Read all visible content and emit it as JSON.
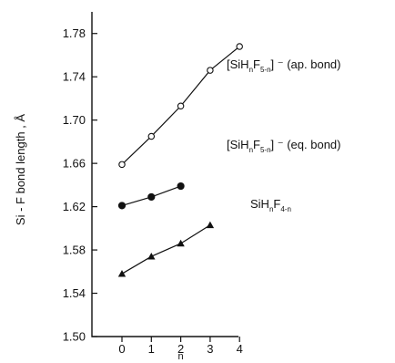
{
  "chart_data": {
    "type": "line",
    "x": [
      0,
      1,
      2,
      3,
      4
    ],
    "xlabel": "n",
    "ylabel": "Si - F bond length , Å",
    "xlim": [
      -0.5,
      4.5
    ],
    "ylim": [
      1.5,
      1.8
    ],
    "yticks": [
      "1.50",
      "1.54",
      "1.58",
      "1.62",
      "1.66",
      "1.70",
      "1.74",
      "1.78"
    ],
    "xticks": [
      "0",
      "1",
      "2",
      "3",
      "4"
    ],
    "grid": false,
    "series": [
      {
        "key": "ap",
        "name_parts": {
          "pre": "[SiH",
          "sub1": "n",
          "mid": "F",
          "sub2": "5-n",
          "post": "] ⁻ (ap. bond)"
        },
        "marker": "open-circle",
        "x": [
          0,
          1,
          2,
          3,
          4
        ],
        "values": [
          1.659,
          1.685,
          1.713,
          1.746,
          1.768
        ]
      },
      {
        "key": "eq",
        "name_parts": {
          "pre": "[SiH",
          "sub1": "n",
          "mid": "F",
          "sub2": "5-n",
          "post": "] ⁻ (eq. bond)"
        },
        "marker": "filled-circle",
        "x": [
          0,
          1,
          2
        ],
        "values": [
          1.621,
          1.629,
          1.639
        ]
      },
      {
        "key": "neutral",
        "name_parts": {
          "pre": "SiH",
          "sub1": "n",
          "mid": "F",
          "sub2": "4-n",
          "post": ""
        },
        "marker": "filled-triangle",
        "x": [
          0,
          1,
          2,
          3
        ],
        "values": [
          1.558,
          1.574,
          1.586,
          1.603
        ]
      }
    ]
  }
}
